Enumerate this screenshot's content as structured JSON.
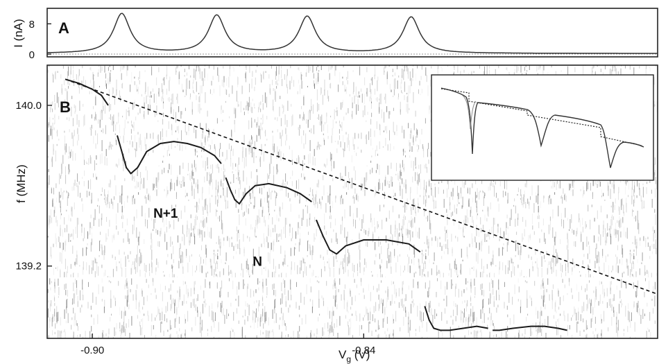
{
  "chart_data": [
    {
      "panel": "A",
      "type": "line",
      "ylabel": "I (nA)",
      "yticks": [
        "8",
        "0"
      ],
      "ylim": [
        -0.5,
        11
      ],
      "xlim": [
        -0.91,
        -0.775
      ],
      "series": [
        {
          "peaks": [
            {
              "x": -0.8935,
              "y": 10.5
            },
            {
              "x": -0.8725,
              "y": 10.0
            },
            {
              "x": -0.8525,
              "y": 9.7
            },
            {
              "x": -0.8295,
              "y": 9.6
            }
          ]
        }
      ]
    },
    {
      "panel": "B",
      "type": "line",
      "ylabel": "f (MHz)",
      "xlabel_main": "V",
      "xlabel_sub": "g",
      "xlabel_unit": " (V)",
      "xticks": [
        "-0.90",
        "-0.84"
      ],
      "xtick_values": [
        -0.9,
        -0.84
      ],
      "yticks": [
        "140.0",
        "139.2"
      ],
      "ytick_values": [
        140.0,
        139.2
      ],
      "xlim": [
        -0.91,
        -0.775
      ],
      "ylim": [
        138.84,
        140.2
      ],
      "annotations": [
        {
          "text": "N+1",
          "x": -0.8838,
          "y": 139.44
        },
        {
          "text": "N",
          "x": -0.8635,
          "y": 139.2
        }
      ],
      "dashed_line": [
        [
          -0.906,
          140.13
        ],
        [
          -0.775,
          139.06
        ]
      ],
      "segments": [
        [
          [
            -0.906,
            140.13
          ],
          [
            -0.903,
            140.11
          ],
          [
            -0.9,
            140.08
          ],
          [
            -0.898,
            140.05
          ],
          [
            -0.8965,
            140.0
          ]
        ],
        [
          [
            -0.8945,
            139.85
          ],
          [
            -0.8935,
            139.77
          ],
          [
            -0.8925,
            139.69
          ],
          [
            -0.8915,
            139.66
          ],
          [
            -0.89,
            139.69
          ],
          [
            -0.888,
            139.77
          ],
          [
            -0.885,
            139.81
          ],
          [
            -0.882,
            139.82
          ],
          [
            -0.879,
            139.81
          ],
          [
            -0.876,
            139.79
          ],
          [
            -0.873,
            139.75
          ],
          [
            -0.8715,
            139.71
          ]
        ],
        [
          [
            -0.8705,
            139.64
          ],
          [
            -0.8695,
            139.58
          ],
          [
            -0.8685,
            139.53
          ],
          [
            -0.8675,
            139.51
          ],
          [
            -0.866,
            139.56
          ],
          [
            -0.864,
            139.6
          ],
          [
            -0.861,
            139.61
          ],
          [
            -0.857,
            139.59
          ],
          [
            -0.854,
            139.56
          ],
          [
            -0.8515,
            139.52
          ]
        ],
        [
          [
            -0.8505,
            139.43
          ],
          [
            -0.849,
            139.35
          ],
          [
            -0.8475,
            139.28
          ],
          [
            -0.846,
            139.26
          ],
          [
            -0.844,
            139.3
          ],
          [
            -0.84,
            139.33
          ],
          [
            -0.835,
            139.33
          ],
          [
            -0.83,
            139.31
          ],
          [
            -0.8275,
            139.27
          ]
        ],
        [
          [
            -0.8265,
            139.0
          ],
          [
            -0.8255,
            138.93
          ],
          [
            -0.8245,
            138.89
          ],
          [
            -0.823,
            138.88
          ],
          [
            -0.821,
            138.88
          ],
          [
            -0.818,
            138.89
          ],
          [
            -0.815,
            138.9
          ],
          [
            -0.8125,
            138.89
          ]
        ],
        [
          [
            -0.8115,
            138.88
          ],
          [
            -0.81,
            138.88
          ],
          [
            -0.807,
            138.89
          ],
          [
            -0.803,
            138.9
          ],
          [
            -0.8,
            138.9
          ],
          [
            -0.797,
            138.89
          ],
          [
            -0.795,
            138.88
          ]
        ]
      ],
      "inset": {
        "dips": [
          1,
          2,
          3
        ]
      }
    }
  ]
}
